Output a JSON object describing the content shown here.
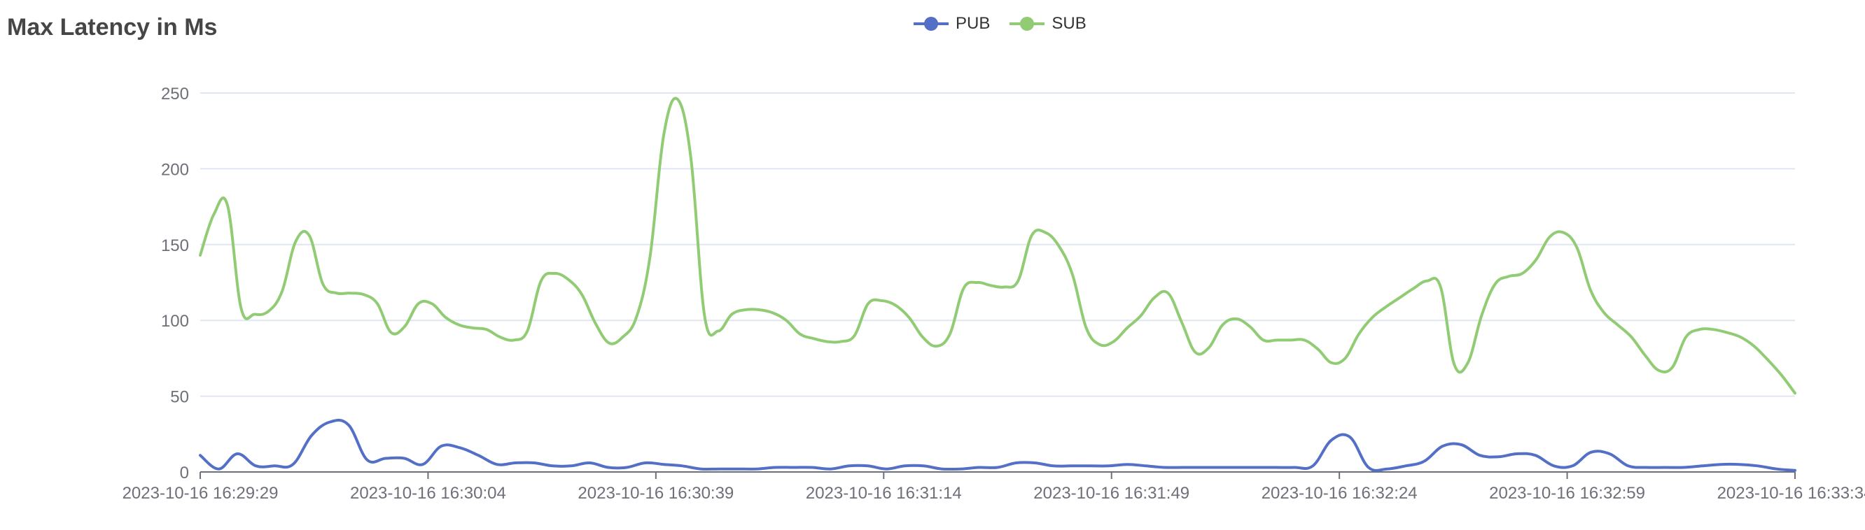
{
  "chart_data": {
    "type": "line",
    "title": "Max Latency in Ms",
    "xlabel": "",
    "ylabel": "",
    "ylim": [
      0,
      250
    ],
    "yticks": [
      0,
      50,
      100,
      150,
      200,
      250
    ],
    "xticks": [
      "2023-10-16 16:29:29",
      "2023-10-16 16:30:04",
      "2023-10-16 16:30:39",
      "2023-10-16 16:31:14",
      "2023-10-16 16:31:49",
      "2023-10-16 16:32:24",
      "2023-10-16 16:32:59",
      "2023-10-16 16:33:34"
    ],
    "grid": true,
    "legend_position": "top-center",
    "series": [
      {
        "name": "PUB",
        "color": "#5470c6",
        "values": [
          11,
          2,
          12,
          4,
          4,
          5,
          24,
          33,
          31,
          8,
          9,
          9,
          5,
          17,
          16,
          11,
          5,
          6,
          6,
          4,
          4,
          6,
          3,
          3,
          6,
          5,
          4,
          2,
          2,
          2,
          2,
          3,
          3,
          3,
          2,
          4,
          4,
          2,
          4,
          4,
          2,
          2,
          3,
          3,
          6,
          6,
          4,
          4,
          4,
          4,
          5,
          4,
          3,
          3,
          3,
          3,
          3,
          3,
          3,
          3,
          4,
          21,
          23,
          3,
          2,
          4,
          7,
          17,
          18,
          11,
          10,
          12,
          11,
          4,
          4,
          13,
          12,
          4,
          3,
          3,
          3,
          4,
          5,
          5,
          4,
          2,
          1
        ]
      },
      {
        "name": "SUB",
        "color": "#91cc75",
        "values": [
          143,
          170,
          176,
          108,
          104,
          106,
          119,
          152,
          156,
          124,
          118,
          118,
          117,
          111,
          92,
          96,
          111,
          111,
          102,
          97,
          95,
          94,
          89,
          87,
          93,
          126,
          131,
          127,
          117,
          98,
          85,
          89,
          102,
          142,
          222,
          246,
          207,
          103,
          93,
          104,
          107,
          107,
          105,
          100,
          91,
          88,
          86,
          86,
          90,
          111,
          113,
          110,
          102,
          89,
          83,
          91,
          121,
          125,
          123,
          122,
          126,
          156,
          158,
          149,
          130,
          95,
          84,
          86,
          95,
          103,
          115,
          118,
          99,
          79,
          82,
          97,
          101,
          96,
          87,
          87,
          87,
          87,
          81,
          72,
          75,
          91,
          102,
          109,
          115,
          121,
          126,
          122,
          71,
          72,
          103,
          124,
          129,
          131,
          140,
          155,
          158,
          148,
          120,
          105,
          97,
          89,
          77,
          67,
          69,
          89,
          94,
          94,
          92,
          89,
          83,
          74,
          64,
          52
        ]
      }
    ]
  }
}
